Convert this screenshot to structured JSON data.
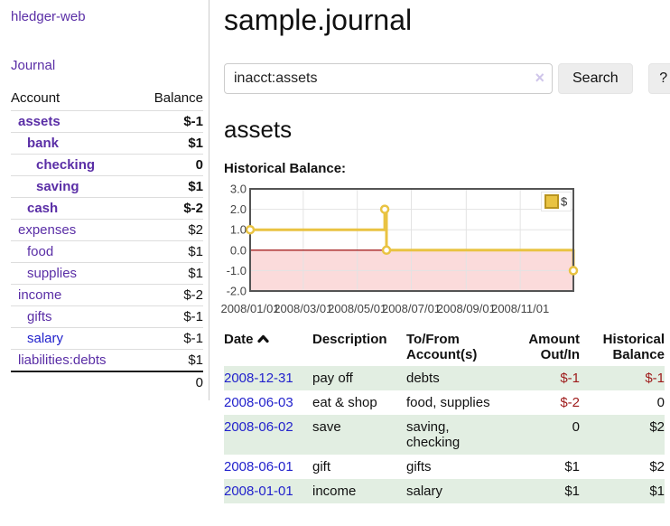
{
  "app": {
    "title": "hledger-web",
    "nav_journal": "Journal"
  },
  "sidebar": {
    "headers": [
      "Account",
      "Balance"
    ],
    "rows": [
      {
        "account": "assets",
        "level": 1,
        "bold": true,
        "name_class": "purple",
        "balance": "$-1",
        "balance_class": "neg-strong"
      },
      {
        "account": "bank",
        "level": 2,
        "bold": true,
        "name_class": "purple",
        "balance": "$1",
        "balance_class": ""
      },
      {
        "account": "checking",
        "level": 3,
        "bold": true,
        "name_class": "purple",
        "balance": "0",
        "balance_class": ""
      },
      {
        "account": "saving",
        "level": 3,
        "bold": true,
        "name_class": "purple",
        "balance": "$1",
        "balance_class": ""
      },
      {
        "account": "cash",
        "level": 2,
        "bold": true,
        "name_class": "purple",
        "balance": "$-2",
        "balance_class": "neg-strong"
      },
      {
        "account": "expenses",
        "level": 1,
        "bold": false,
        "name_class": "purple",
        "balance": "$2",
        "balance_class": ""
      },
      {
        "account": "food",
        "level": 2,
        "bold": false,
        "name_class": "purple",
        "balance": "$1",
        "balance_class": ""
      },
      {
        "account": "supplies",
        "level": 2,
        "bold": false,
        "name_class": "purple",
        "balance": "$1",
        "balance_class": ""
      },
      {
        "account": "income",
        "level": 1,
        "bold": false,
        "name_class": "purple",
        "balance": "$-2",
        "balance_class": "neg-soft"
      },
      {
        "account": "gifts",
        "level": 2,
        "bold": false,
        "name_class": "purple",
        "balance": "$-1",
        "balance_class": "neg-soft"
      },
      {
        "account": "salary",
        "level": 2,
        "bold": false,
        "name_class": "blue",
        "balance": "$-1",
        "balance_class": "neg-soft"
      },
      {
        "account": "liabilities:debts",
        "level": 1,
        "bold": false,
        "name_class": "purple",
        "balance": "$1",
        "balance_class": ""
      }
    ],
    "total": "0"
  },
  "main": {
    "title": "sample.journal",
    "search": {
      "value": "inacct:assets",
      "clear_icon": "×",
      "button_label": "Search",
      "help_label": "?"
    },
    "account_heading": "assets"
  },
  "chart_data": {
    "type": "line",
    "style": "step-after",
    "title": "Historical Balance:",
    "ylim": [
      -2,
      3
    ],
    "x_total_days": 365,
    "yticks": [
      "3.0",
      "2.0",
      "1.0",
      "0.0",
      "-1.0",
      "-2.0"
    ],
    "ytick_values": [
      3,
      2,
      1,
      0,
      -1,
      -2
    ],
    "xticks": [
      {
        "label": "2008/01/01",
        "day": 0
      },
      {
        "label": "2008/03/01",
        "day": 60
      },
      {
        "label": "2008/05/01",
        "day": 121
      },
      {
        "label": "2008/07/01",
        "day": 182
      },
      {
        "label": "2008/09/01",
        "day": 244
      },
      {
        "label": "2008/11/01",
        "day": 305
      }
    ],
    "grid_days": [
      60,
      121,
      182,
      244,
      305
    ],
    "series": [
      {
        "name": "$",
        "color": "#e9c342",
        "points": [
          {
            "date": "2008-01-01",
            "day": 0,
            "value": 1
          },
          {
            "date": "2008-06-01",
            "day": 152,
            "value": 2
          },
          {
            "date": "2008-06-03",
            "day": 154,
            "value": 0
          },
          {
            "date": "2008-12-31",
            "day": 365,
            "value": -1
          }
        ]
      }
    ],
    "legend": {
      "label": "$",
      "position": "top-right",
      "swatch_color": "#e9c342"
    },
    "colors": {
      "negative_fill": "#fbdbdb",
      "zero_line": "#a52020",
      "grid": "#e3e3e3",
      "border": "#545454",
      "tick_text": "#444444"
    }
  },
  "register": {
    "headers": {
      "date": "Date",
      "description": "Description",
      "accounts": "To/From Account(s)",
      "amount": "Amount Out/In",
      "balance": "Historical Balance"
    },
    "sort_icon": "chevron-up",
    "rows": [
      {
        "date": "2008-12-31",
        "description": "pay off",
        "accounts": "debts",
        "amount": "$-1",
        "balance": "$-1"
      },
      {
        "date": "2008-06-03",
        "description": "eat & shop",
        "accounts": "food, supplies",
        "amount": "$-2",
        "balance": "0"
      },
      {
        "date": "2008-06-02",
        "description": "save",
        "accounts": "saving, checking",
        "amount": "0",
        "balance": "$2"
      },
      {
        "date": "2008-06-01",
        "description": "gift",
        "accounts": "gifts",
        "amount": "$1",
        "balance": "$2"
      },
      {
        "date": "2008-01-01",
        "description": "income",
        "accounts": "salary",
        "amount": "$1",
        "balance": "$1"
      }
    ]
  }
}
